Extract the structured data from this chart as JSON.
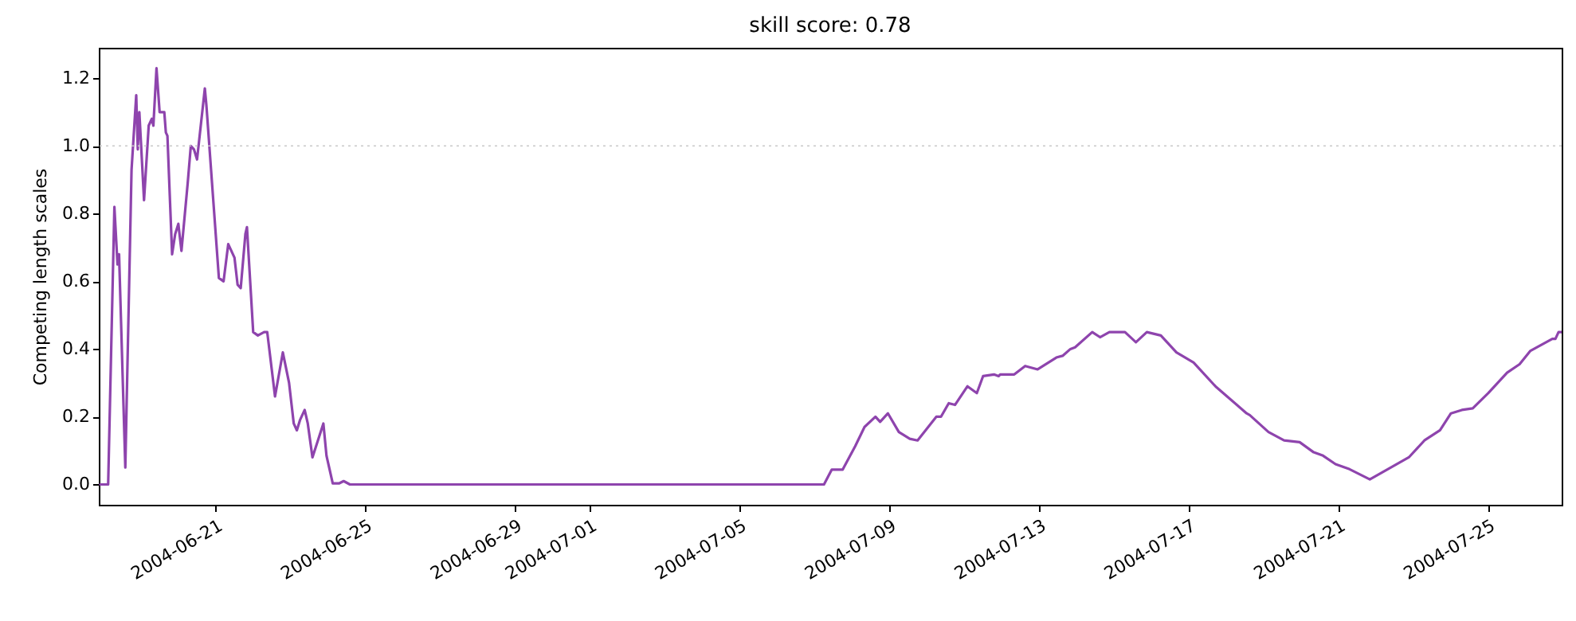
{
  "chart_data": {
    "type": "line",
    "title": "skill score: 0.78",
    "ylabel": "Competing length scales",
    "x": [
      "2004-06-17T22:00",
      "2004-06-18T03:00",
      "2004-06-18T07:00",
      "2004-06-18T09:00",
      "2004-06-18T10:00",
      "2004-06-18T14:00",
      "2004-06-18T18:00",
      "2004-06-18T21:00",
      "2004-06-18T22:00",
      "2004-06-18T23:00",
      "2004-06-19T02:00",
      "2004-06-19T05:00",
      "2004-06-19T07:00",
      "2004-06-19T08:00",
      "2004-06-19T10:00",
      "2004-06-19T12:00",
      "2004-06-19T15:00",
      "2004-06-19T16:00",
      "2004-06-19T17:00",
      "2004-06-19T20:00",
      "2004-06-19T22:00",
      "2004-06-20T00:00",
      "2004-06-20T02:00",
      "2004-06-20T06:00",
      "2004-06-20T08:00",
      "2004-06-20T10:00",
      "2004-06-20T12:00",
      "2004-06-20T17:00",
      "2004-06-20T18:00",
      "2004-06-21T02:00",
      "2004-06-21T05:00",
      "2004-06-21T08:00",
      "2004-06-21T12:00",
      "2004-06-21T14:00",
      "2004-06-21T16:00",
      "2004-06-21T19:00",
      "2004-06-21T20:00",
      "2004-06-22T00:00",
      "2004-06-22T03:00",
      "2004-06-22T07:00",
      "2004-06-22T09:00",
      "2004-06-22T14:00",
      "2004-06-22T19:00",
      "2004-06-22T23:00",
      "2004-06-23T02:00",
      "2004-06-23T04:00",
      "2004-06-23T06:00",
      "2004-06-23T09:00",
      "2004-06-23T11:00",
      "2004-06-23T14:00",
      "2004-06-23T21:00",
      "2004-06-23T23:00",
      "2004-06-24T03:00",
      "2004-06-24T07:00",
      "2004-06-24T10:00",
      "2004-06-24T14:00",
      "2004-07-07T06:00",
      "2004-07-07T11:00",
      "2004-07-07T18:00",
      "2004-07-08T02:00",
      "2004-07-08T08:00",
      "2004-07-08T15:00",
      "2004-07-08T18:00",
      "2004-07-08T23:00",
      "2004-07-09T06:00",
      "2004-07-09T13:00",
      "2004-07-09T18:00",
      "2004-07-10T06:00",
      "2004-07-10T09:00",
      "2004-07-10T14:00",
      "2004-07-10T18:00",
      "2004-07-11T02:00",
      "2004-07-11T08:00",
      "2004-07-11T12:00",
      "2004-07-11T19:00",
      "2004-07-11T22:00",
      "2004-07-11T23:00",
      "2004-07-12T08:00",
      "2004-07-12T15:00",
      "2004-07-12T23:00",
      "2004-07-13T11:00",
      "2004-07-13T15:00",
      "2004-07-13T20:00",
      "2004-07-13T23:00",
      "2004-07-14T10:00",
      "2004-07-14T15:00",
      "2004-07-14T21:00",
      "2004-07-15T07:00",
      "2004-07-15T14:00",
      "2004-07-15T21:00",
      "2004-07-16T06:00",
      "2004-07-16T16:00",
      "2004-07-17T03:00",
      "2004-07-17T17:00",
      "2004-07-17T22:00",
      "2004-07-18T13:00",
      "2004-07-18T15:00",
      "2004-07-19T03:00",
      "2004-07-19T13:00",
      "2004-07-19T23:00",
      "2004-07-20T08:00",
      "2004-07-20T14:00",
      "2004-07-20T22:00",
      "2004-07-21T07:00",
      "2004-07-21T20:00",
      "2004-07-22T21:00",
      "2004-07-23T07:00",
      "2004-07-23T17:00",
      "2004-07-24T00:00",
      "2004-07-24T07:00",
      "2004-07-24T14:00",
      "2004-07-25T00:00",
      "2004-07-25T12:00",
      "2004-07-25T20:00",
      "2004-07-26T03:00",
      "2004-07-26T17:00",
      "2004-07-26T19:00",
      "2004-07-26T21:00",
      "2004-07-26T23:00"
    ],
    "series": [
      {
        "color": "#8e44ad",
        "values": [
          0,
          0,
          0.82,
          0.65,
          0.68,
          0.05,
          0.93,
          1.15,
          0.99,
          1.1,
          0.84,
          1.06,
          1.08,
          1.06,
          1.23,
          1.1,
          1.1,
          1.04,
          1.03,
          0.68,
          0.74,
          0.77,
          0.69,
          0.89,
          1.0,
          0.99,
          0.96,
          1.17,
          1.12,
          0.61,
          0.6,
          0.71,
          0.67,
          0.59,
          0.58,
          0.74,
          0.76,
          0.45,
          0.44,
          0.45,
          0.45,
          0.26,
          0.39,
          0.3,
          0.18,
          0.16,
          0.19,
          0.22,
          0.18,
          0.08,
          0.18,
          0.085,
          0.003,
          0.003,
          0.01,
          0,
          0,
          0.044,
          0.044,
          0.113,
          0.17,
          0.2,
          0.185,
          0.21,
          0.155,
          0.135,
          0.13,
          0.2,
          0.2,
          0.24,
          0.235,
          0.29,
          0.27,
          0.32,
          0.325,
          0.32,
          0.325,
          0.325,
          0.35,
          0.34,
          0.375,
          0.38,
          0.4,
          0.405,
          0.45,
          0.435,
          0.45,
          0.45,
          0.42,
          0.45,
          0.44,
          0.39,
          0.36,
          0.29,
          0.27,
          0.21,
          0.205,
          0.155,
          0.13,
          0.125,
          0.095,
          0.085,
          0.06,
          0.045,
          0.015,
          0.08,
          0.13,
          0.16,
          0.21,
          0.22,
          0.225,
          0.27,
          0.33,
          0.355,
          0.395,
          0.43,
          0.43,
          0.45,
          0.45
        ]
      }
    ],
    "xlim": [
      "2004-06-17T21:00",
      "2004-07-26T23:00"
    ],
    "xticks": [
      "2004-06-21",
      "2004-06-25",
      "2004-06-29",
      "2004-07-01",
      "2004-07-05",
      "2004-07-09",
      "2004-07-13",
      "2004-07-17",
      "2004-07-21",
      "2004-07-25"
    ],
    "ylim": [
      -0.06,
      1.29
    ],
    "yticks": [
      {
        "value": 0,
        "label": "0.0"
      },
      {
        "value": 0.2,
        "label": "0.2"
      },
      {
        "value": 0.4,
        "label": "0.4"
      },
      {
        "value": 0.6,
        "label": "0.6"
      },
      {
        "value": 0.8,
        "label": "0.8"
      },
      {
        "value": 1,
        "label": "1.0"
      },
      {
        "value": 1.2,
        "label": "1.2"
      }
    ],
    "ref_lines": [
      {
        "axis": "y",
        "value": 1,
        "color": "#c8c8c8",
        "line_style": "dotted"
      }
    ],
    "grid": false,
    "line_style": "solid",
    "marker": "none"
  }
}
